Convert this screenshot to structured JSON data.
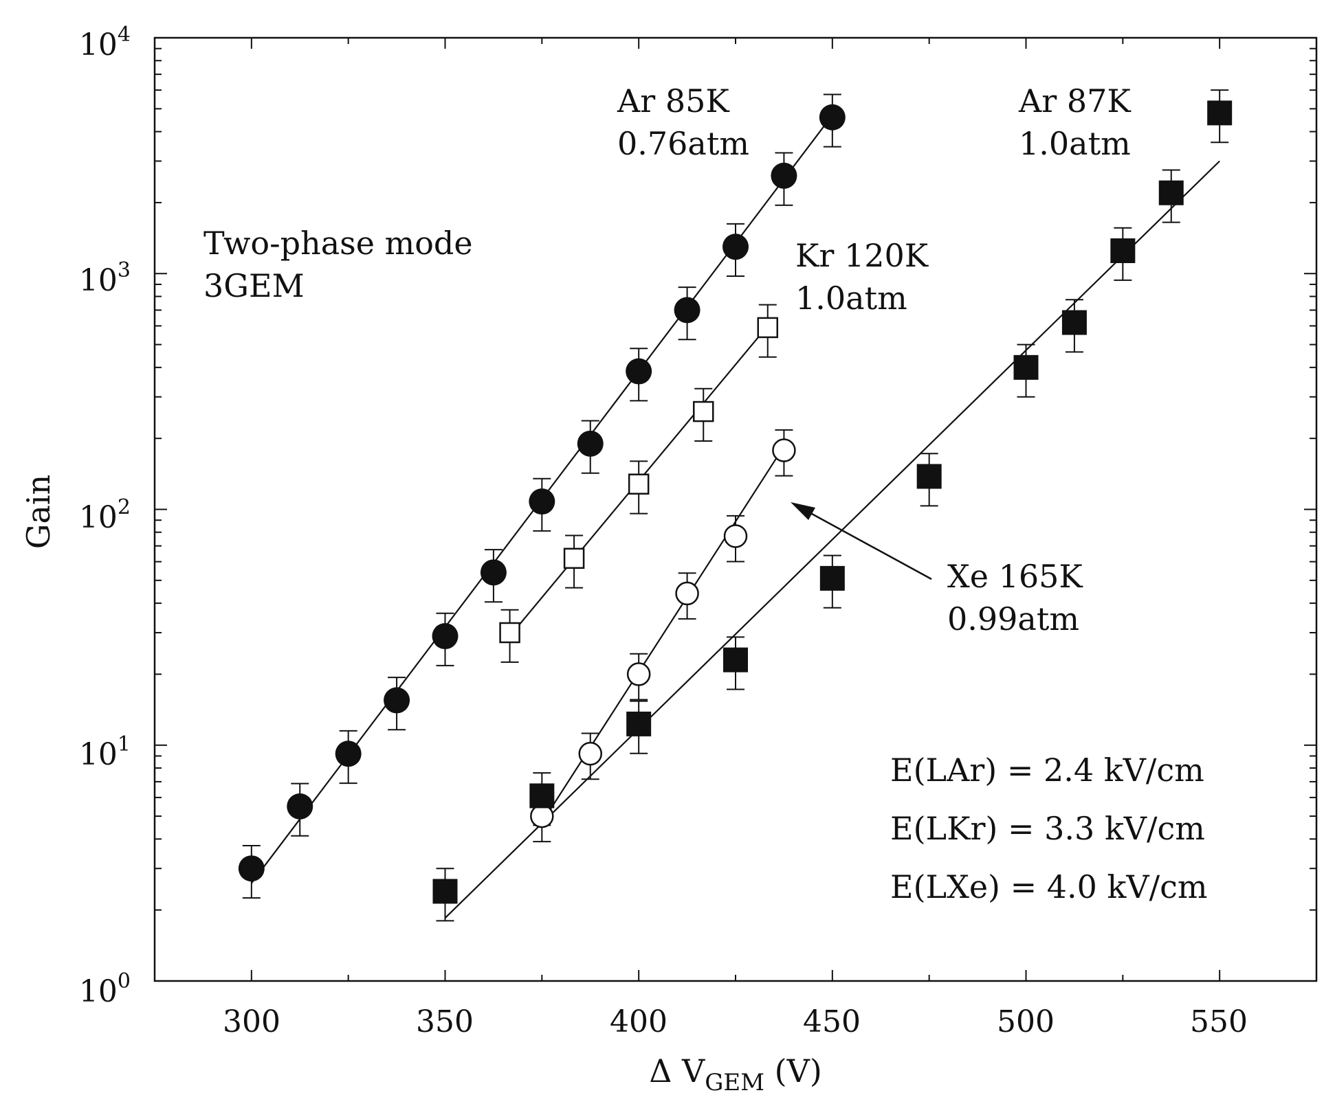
{
  "chart_data": {
    "type": "scatter",
    "xscale": "linear",
    "yscale": "log",
    "xlim": [
      275,
      575
    ],
    "ylim": [
      1,
      10000
    ],
    "xticks": [
      300,
      350,
      400,
      450,
      500,
      550
    ],
    "ymajor": [
      1,
      10,
      100,
      1000,
      10000
    ],
    "xlabel": {
      "main": "Δ V",
      "sub": "GEM",
      "tail": " (V)"
    },
    "ylabel": "Gain",
    "ytick_labels": [
      {
        "value": 1,
        "base": "10",
        "exp": "0"
      },
      {
        "value": 10,
        "base": "10",
        "exp": "1"
      },
      {
        "value": 100,
        "base": "10",
        "exp": "2"
      },
      {
        "value": 1000,
        "base": "10",
        "exp": "3"
      },
      {
        "value": 10000,
        "base": "10",
        "exp": "4"
      }
    ],
    "annotations": {
      "mode_line1": "Two-phase mode",
      "mode_line2": "3GEM",
      "field_lar": "E(LAr) = 2.4 kV/cm",
      "field_lkr": "E(LKr) = 3.3 kV/cm",
      "field_lxe": "E(LXe) = 4.0 kV/cm"
    },
    "series": [
      {
        "name": "Ar 85K",
        "sub": "0.76atm",
        "marker": "filled-circle",
        "x": [
          300,
          312.5,
          325,
          337.5,
          350,
          362.5,
          375,
          387.5,
          400,
          412.5,
          425,
          437.5,
          450
        ],
        "y": [
          3.0,
          5.5,
          9.2,
          15.5,
          29,
          54,
          108,
          190,
          385,
          700,
          1300,
          2600,
          4600
        ],
        "err": 0.25,
        "fit": [
          [
            300,
            2.6
          ],
          [
            450,
            4700
          ]
        ]
      },
      {
        "name": "Kr 120K",
        "sub": "1.0atm",
        "marker": "open-square",
        "x": [
          366.7,
          383.3,
          400,
          416.7,
          433.3
        ],
        "y": [
          30,
          62,
          128,
          260,
          590
        ],
        "err": 0.25,
        "fit": [
          [
            366.7,
            29
          ],
          [
            433.3,
            600
          ]
        ]
      },
      {
        "name": "Xe 165K",
        "sub": "0.99atm",
        "marker": "open-circle",
        "x": [
          375,
          387.5,
          400,
          412.5,
          425,
          437.5
        ],
        "y": [
          5.0,
          9.2,
          20,
          44,
          77,
          178
        ],
        "err": 0.22,
        "fit": [
          [
            375,
            4.7
          ],
          [
            437.5,
            185
          ]
        ]
      },
      {
        "name": "Ar 87K",
        "sub": "1.0atm",
        "marker": "filled-square",
        "x": [
          350,
          375,
          400,
          425,
          450,
          475,
          500,
          512.5,
          525,
          537.5,
          550
        ],
        "y": [
          2.4,
          6.1,
          12.3,
          23,
          51,
          138,
          400,
          620,
          1250,
          2200,
          4800
        ],
        "err": 0.25,
        "fit": [
          [
            350,
            1.85
          ],
          [
            550,
            3000
          ]
        ]
      }
    ]
  }
}
